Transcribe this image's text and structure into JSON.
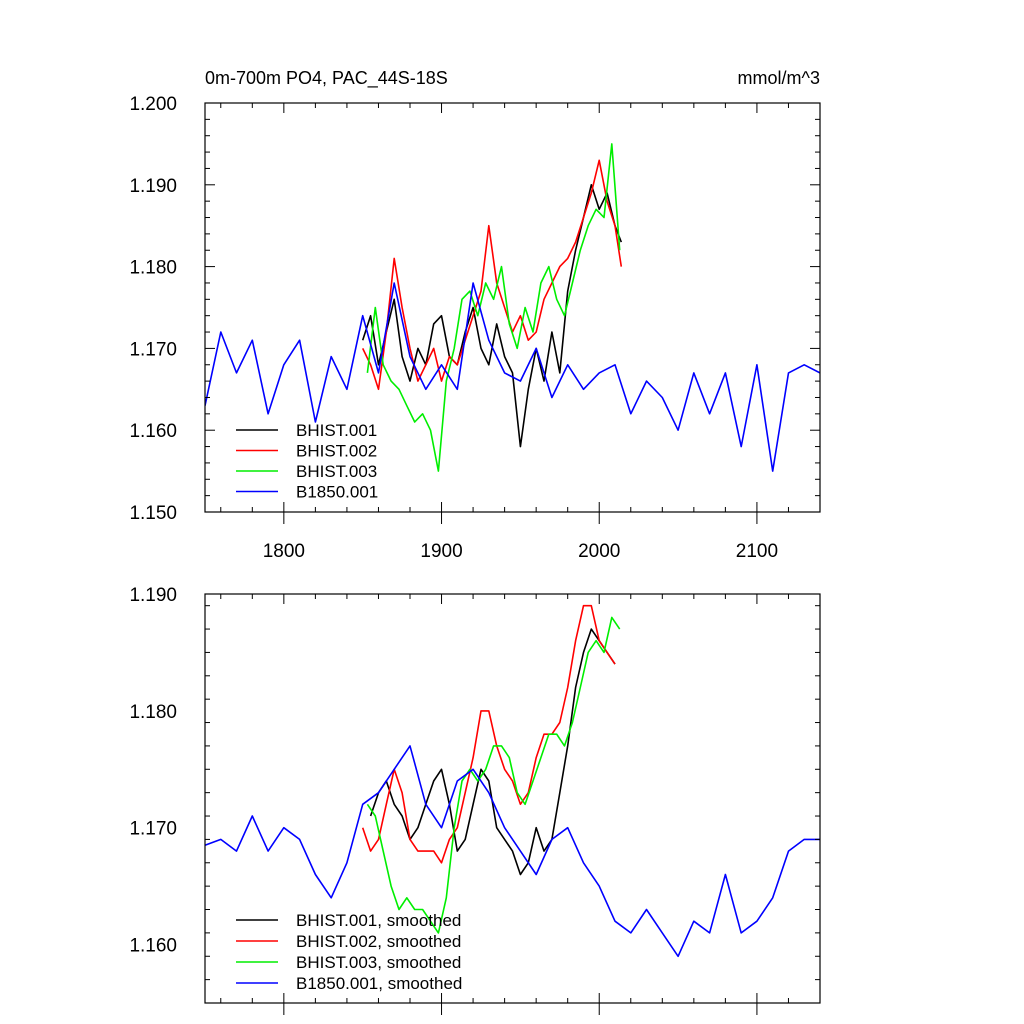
{
  "chart_data": [
    {
      "type": "line",
      "title": "0m-700m PO4, PAC_44S-18S",
      "units": "mmol/m^3",
      "xlim": [
        1750,
        2140
      ],
      "ylim": [
        1.15,
        1.2
      ],
      "xticks": [
        1800,
        1900,
        2000,
        2100
      ],
      "xtick_labels": [
        "1800",
        "1900",
        "2000",
        "2100"
      ],
      "yticks": [
        1.15,
        1.16,
        1.17,
        1.18,
        1.19,
        1.2
      ],
      "ytick_labels": [
        "1.150",
        "1.160",
        "1.170",
        "1.180",
        "1.190",
        "1.200"
      ],
      "grid": false,
      "legend_position": "bottom-left",
      "series": [
        {
          "name": "BHIST.001",
          "color": "#000000",
          "x": [
            1850,
            1855,
            1860,
            1865,
            1870,
            1875,
            1880,
            1885,
            1890,
            1895,
            1900,
            1905,
            1910,
            1915,
            1920,
            1925,
            1930,
            1935,
            1940,
            1945,
            1950,
            1955,
            1960,
            1965,
            1970,
            1975,
            1980,
            1985,
            1990,
            1995,
            2000,
            2005,
            2010,
            2014
          ],
          "y": [
            1.171,
            1.174,
            1.168,
            1.172,
            1.176,
            1.169,
            1.166,
            1.17,
            1.168,
            1.173,
            1.174,
            1.169,
            1.168,
            1.172,
            1.175,
            1.17,
            1.168,
            1.173,
            1.169,
            1.167,
            1.158,
            1.165,
            1.17,
            1.166,
            1.172,
            1.167,
            1.177,
            1.182,
            1.186,
            1.19,
            1.187,
            1.189,
            1.185,
            1.183
          ]
        },
        {
          "name": "BHIST.002",
          "color": "#ff0000",
          "x": [
            1850,
            1855,
            1860,
            1865,
            1870,
            1875,
            1880,
            1885,
            1890,
            1895,
            1900,
            1905,
            1910,
            1915,
            1920,
            1925,
            1930,
            1935,
            1940,
            1945,
            1950,
            1955,
            1960,
            1965,
            1970,
            1975,
            1980,
            1985,
            1990,
            1995,
            2000,
            2005,
            2010,
            2014
          ],
          "y": [
            1.17,
            1.168,
            1.165,
            1.172,
            1.181,
            1.175,
            1.17,
            1.166,
            1.168,
            1.17,
            1.166,
            1.169,
            1.168,
            1.171,
            1.174,
            1.177,
            1.185,
            1.178,
            1.175,
            1.172,
            1.174,
            1.171,
            1.172,
            1.176,
            1.178,
            1.18,
            1.181,
            1.183,
            1.186,
            1.189,
            1.193,
            1.188,
            1.185,
            1.18
          ]
        },
        {
          "name": "BHIST.003",
          "color": "#00ee00",
          "x": [
            1853,
            1858,
            1863,
            1868,
            1873,
            1878,
            1883,
            1888,
            1893,
            1898,
            1903,
            1908,
            1913,
            1918,
            1923,
            1928,
            1933,
            1938,
            1943,
            1948,
            1953,
            1958,
            1963,
            1968,
            1973,
            1978,
            1983,
            1988,
            1993,
            1998,
            2003,
            2008,
            2013
          ],
          "y": [
            1.167,
            1.175,
            1.168,
            1.166,
            1.165,
            1.163,
            1.161,
            1.162,
            1.16,
            1.155,
            1.166,
            1.17,
            1.176,
            1.177,
            1.174,
            1.178,
            1.176,
            1.18,
            1.173,
            1.17,
            1.175,
            1.172,
            1.178,
            1.18,
            1.176,
            1.174,
            1.178,
            1.182,
            1.185,
            1.187,
            1.186,
            1.195,
            1.182
          ]
        },
        {
          "name": "B1850.001",
          "color": "#0000ff",
          "x": [
            1750,
            1760,
            1770,
            1780,
            1790,
            1800,
            1810,
            1820,
            1830,
            1840,
            1850,
            1860,
            1870,
            1880,
            1890,
            1900,
            1910,
            1920,
            1930,
            1940,
            1950,
            1960,
            1970,
            1980,
            1990,
            2000,
            2010,
            2020,
            2030,
            2040,
            2050,
            2060,
            2070,
            2080,
            2090,
            2100,
            2110,
            2120,
            2130,
            2140
          ],
          "y": [
            1.163,
            1.172,
            1.167,
            1.171,
            1.162,
            1.168,
            1.171,
            1.161,
            1.169,
            1.165,
            1.174,
            1.167,
            1.178,
            1.169,
            1.165,
            1.168,
            1.165,
            1.178,
            1.171,
            1.167,
            1.166,
            1.17,
            1.164,
            1.168,
            1.165,
            1.167,
            1.168,
            1.162,
            1.166,
            1.164,
            1.16,
            1.167,
            1.162,
            1.167,
            1.158,
            1.168,
            1.155,
            1.167,
            1.168,
            1.167
          ]
        }
      ]
    },
    {
      "type": "line",
      "xlim": [
        1750,
        2140
      ],
      "ylim": [
        1.155,
        1.19
      ],
      "xticks": [
        1800,
        1900,
        2000,
        2100
      ],
      "yticks": [
        1.16,
        1.17,
        1.18,
        1.19
      ],
      "ytick_labels": [
        "1.160",
        "1.170",
        "1.180",
        "1.190"
      ],
      "grid": false,
      "legend_position": "bottom-left",
      "series": [
        {
          "name": "BHIST.001, smoothed",
          "color": "#000000",
          "x": [
            1855,
            1860,
            1865,
            1870,
            1875,
            1880,
            1885,
            1890,
            1895,
            1900,
            1905,
            1910,
            1915,
            1920,
            1925,
            1930,
            1935,
            1940,
            1945,
            1950,
            1955,
            1960,
            1965,
            1970,
            1975,
            1980,
            1985,
            1990,
            1995,
            2000,
            2005,
            2010
          ],
          "y": [
            1.171,
            1.173,
            1.174,
            1.172,
            1.171,
            1.169,
            1.17,
            1.172,
            1.174,
            1.175,
            1.172,
            1.168,
            1.169,
            1.172,
            1.175,
            1.174,
            1.17,
            1.169,
            1.168,
            1.166,
            1.167,
            1.17,
            1.168,
            1.169,
            1.173,
            1.177,
            1.182,
            1.185,
            1.187,
            1.186,
            1.185,
            1.184
          ]
        },
        {
          "name": "BHIST.002, smoothed",
          "color": "#ff0000",
          "x": [
            1850,
            1855,
            1860,
            1865,
            1870,
            1875,
            1880,
            1885,
            1890,
            1895,
            1900,
            1905,
            1910,
            1915,
            1920,
            1925,
            1930,
            1935,
            1940,
            1945,
            1950,
            1955,
            1960,
            1965,
            1970,
            1975,
            1980,
            1985,
            1990,
            1995,
            2000,
            2005,
            2010
          ],
          "y": [
            1.17,
            1.168,
            1.169,
            1.172,
            1.175,
            1.173,
            1.169,
            1.168,
            1.168,
            1.168,
            1.167,
            1.169,
            1.17,
            1.173,
            1.176,
            1.18,
            1.18,
            1.177,
            1.175,
            1.174,
            1.172,
            1.173,
            1.176,
            1.178,
            1.178,
            1.179,
            1.182,
            1.186,
            1.189,
            1.189,
            1.186,
            1.185,
            1.184
          ]
        },
        {
          "name": "BHIST.003, smoothed",
          "color": "#00ee00",
          "x": [
            1853,
            1858,
            1863,
            1868,
            1873,
            1878,
            1883,
            1888,
            1893,
            1898,
            1903,
            1908,
            1913,
            1918,
            1923,
            1928,
            1933,
            1938,
            1943,
            1948,
            1953,
            1958,
            1963,
            1968,
            1973,
            1978,
            1983,
            1988,
            1993,
            1998,
            2003,
            2008,
            2013
          ],
          "y": [
            1.172,
            1.171,
            1.168,
            1.165,
            1.163,
            1.164,
            1.163,
            1.163,
            1.162,
            1.161,
            1.164,
            1.17,
            1.174,
            1.175,
            1.174,
            1.175,
            1.177,
            1.177,
            1.176,
            1.173,
            1.172,
            1.174,
            1.176,
            1.178,
            1.178,
            1.177,
            1.179,
            1.182,
            1.185,
            1.186,
            1.185,
            1.188,
            1.187
          ]
        },
        {
          "name": "B1850.001, smoothed",
          "color": "#0000ff",
          "x": [
            1750,
            1760,
            1770,
            1780,
            1790,
            1800,
            1810,
            1820,
            1830,
            1840,
            1850,
            1860,
            1870,
            1880,
            1890,
            1900,
            1910,
            1920,
            1930,
            1940,
            1950,
            1960,
            1970,
            1980,
            1990,
            2000,
            2010,
            2020,
            2030,
            2040,
            2050,
            2060,
            2070,
            2080,
            2090,
            2100,
            2110,
            2120,
            2130,
            2140
          ],
          "y": [
            1.1685,
            1.169,
            1.168,
            1.171,
            1.168,
            1.17,
            1.169,
            1.166,
            1.164,
            1.167,
            1.172,
            1.173,
            1.175,
            1.177,
            1.172,
            1.17,
            1.174,
            1.175,
            1.173,
            1.17,
            1.168,
            1.166,
            1.169,
            1.17,
            1.167,
            1.165,
            1.162,
            1.161,
            1.163,
            1.161,
            1.159,
            1.162,
            1.161,
            1.166,
            1.161,
            1.162,
            1.164,
            1.168,
            1.169,
            1.169
          ]
        }
      ]
    }
  ]
}
